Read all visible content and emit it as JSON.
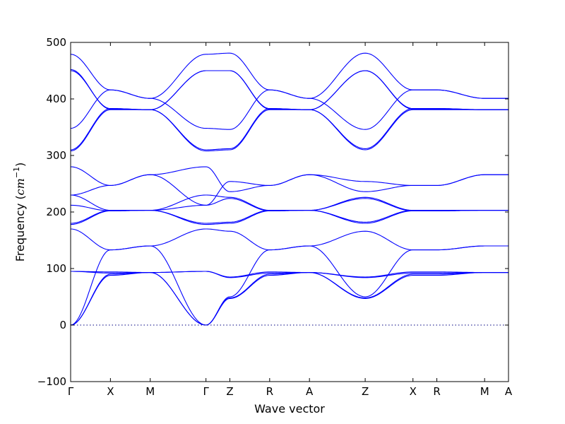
{
  "chart_data": {
    "type": "line",
    "title": "",
    "xlabel": "Wave vector",
    "ylabel_prefix": "Frequency (",
    "ylabel_math": "cm",
    "ylabel_exp": "−1",
    "ylabel_suffix": ")",
    "ylim": [
      -100,
      500
    ],
    "yticks": [
      -100,
      0,
      100,
      200,
      300,
      400,
      500
    ],
    "ytick_labels": [
      "−100",
      "0",
      "100",
      "200",
      "300",
      "400",
      "500"
    ],
    "grid": false,
    "zero_line": true,
    "color": "#0000ff",
    "kpoints": [
      {
        "label": "Γ",
        "x": 0
      },
      {
        "label": "X",
        "x": 0.5
      },
      {
        "label": "M",
        "x": 1.0
      },
      {
        "label": "Γ",
        "x": 1.7
      },
      {
        "label": "Z",
        "x": 2.0
      },
      {
        "label": "R",
        "x": 2.5
      },
      {
        "label": "A",
        "x": 3.0
      },
      {
        "label": "Z",
        "x": 3.7
      },
      {
        "label": "X",
        "x": 4.3
      },
      {
        "label": "R",
        "x": 4.6
      },
      {
        "label": "M",
        "x": 5.2
      },
      {
        "label": "A",
        "x": 5.5
      }
    ],
    "xlim": [
      0,
      5.5
    ],
    "series": [
      {
        "x": [
          0,
          0.5,
          1.0,
          1.7,
          2.0,
          2.5,
          3.0,
          3.7,
          4.3,
          4.6,
          5.2,
          5.5
        ],
        "values": [
          0,
          88,
          93,
          0,
          47,
          88,
          93,
          47,
          88,
          88,
          93,
          93
        ]
      },
      {
        "x": [
          0,
          0.5,
          1.0,
          1.7,
          2.0,
          2.5,
          3.0,
          3.7,
          4.3,
          4.6,
          5.2,
          5.5
        ],
        "values": [
          0,
          90,
          93,
          0,
          48,
          90,
          93,
          48,
          90,
          90,
          93,
          93
        ]
      },
      {
        "x": [
          0,
          0.5,
          1.0,
          1.7,
          2.0,
          2.5,
          3.0,
          3.7,
          4.3,
          4.6,
          5.2,
          5.5
        ],
        "values": [
          0,
          133,
          140,
          0,
          50,
          133,
          140,
          50,
          133,
          133,
          140,
          140
        ]
      },
      {
        "x": [
          0,
          0.5,
          1.0,
          1.7,
          2.0,
          2.5,
          3.0,
          3.7,
          4.3,
          4.6,
          5.2,
          5.5
        ],
        "values": [
          95,
          92,
          93,
          95,
          84,
          92,
          93,
          84,
          92,
          92,
          93,
          93
        ]
      },
      {
        "x": [
          0,
          0.5,
          1.0,
          1.7,
          2.0,
          2.5,
          3.0,
          3.7,
          4.3,
          4.6,
          5.2,
          5.5
        ],
        "values": [
          95,
          94,
          93,
          95,
          85,
          94,
          93,
          85,
          94,
          94,
          93,
          93
        ]
      },
      {
        "x": [
          0,
          0.5,
          1.0,
          1.7,
          2.0,
          2.5,
          3.0,
          3.7,
          4.3,
          4.6,
          5.2,
          5.5
        ],
        "values": [
          170,
          133,
          140,
          170,
          166,
          133,
          140,
          166,
          133,
          133,
          140,
          140
        ]
      },
      {
        "x": [
          0,
          0.5,
          1.0,
          1.7,
          2.0,
          2.5,
          3.0,
          3.7,
          4.3,
          4.6,
          5.2,
          5.5
        ],
        "values": [
          178,
          202,
          203,
          178,
          180,
          202,
          203,
          180,
          202,
          202,
          203,
          203
        ]
      },
      {
        "x": [
          0,
          0.5,
          1.0,
          1.7,
          2.0,
          2.5,
          3.0,
          3.7,
          4.3,
          4.6,
          5.2,
          5.5
        ],
        "values": [
          180,
          203,
          203,
          180,
          182,
          203,
          203,
          182,
          203,
          203,
          203,
          203
        ]
      },
      {
        "x": [
          0,
          0.5,
          1.0,
          1.7,
          2.0,
          2.5,
          3.0,
          3.7,
          4.3,
          4.6,
          5.2,
          5.5
        ],
        "values": [
          212,
          202,
          203,
          212,
          224,
          202,
          203,
          224,
          202,
          202,
          203,
          203
        ]
      },
      {
        "x": [
          0,
          0.5,
          1.0,
          1.7,
          2.0,
          2.5,
          3.0,
          3.7,
          4.3,
          4.6,
          5.2,
          5.5
        ],
        "values": [
          230,
          203,
          203,
          230,
          226,
          203,
          203,
          226,
          203,
          203,
          203,
          203
        ]
      },
      {
        "x": [
          0,
          0.5,
          1.0,
          1.7,
          2.0,
          2.5,
          3.0,
          3.7,
          4.3,
          4.6,
          5.2,
          5.5
        ],
        "values": [
          280,
          247,
          266,
          280,
          236,
          247,
          266,
          236,
          247,
          247,
          266,
          266
        ]
      },
      {
        "x": [
          0,
          0.5,
          1.0,
          1.7,
          2.0,
          2.5,
          3.0,
          3.7,
          4.3,
          4.6,
          5.2,
          5.5
        ],
        "values": [
          230,
          247,
          266,
          212,
          254,
          247,
          266,
          254,
          247,
          247,
          266,
          266
        ]
      },
      {
        "x": [
          0,
          0.5,
          1.0,
          1.7,
          2.0,
          2.5,
          3.0,
          3.7,
          4.3,
          4.6,
          5.2,
          5.5
        ],
        "values": [
          308,
          381,
          381,
          308,
          310,
          381,
          381,
          310,
          381,
          381,
          381,
          381
        ]
      },
      {
        "x": [
          0,
          0.5,
          1.0,
          1.7,
          2.0,
          2.5,
          3.0,
          3.7,
          4.3,
          4.6,
          5.2,
          5.5
        ],
        "values": [
          310,
          383,
          381,
          310,
          312,
          383,
          381,
          312,
          383,
          383,
          381,
          381
        ]
      },
      {
        "x": [
          0,
          0.5,
          1.0,
          1.7,
          2.0,
          2.5,
          3.0,
          3.7,
          4.3,
          4.6,
          5.2,
          5.5
        ],
        "values": [
          348,
          416,
          401,
          348,
          346,
          416,
          401,
          346,
          416,
          416,
          401,
          401
        ]
      },
      {
        "x": [
          0,
          0.5,
          1.0,
          1.7,
          2.0,
          2.5,
          3.0,
          3.7,
          4.3,
          4.6,
          5.2,
          5.5
        ],
        "values": [
          450,
          383,
          381,
          450,
          450,
          383,
          381,
          450,
          383,
          383,
          381,
          381
        ]
      },
      {
        "x": [
          0,
          0.5,
          1.0,
          1.7,
          2.0,
          2.5,
          3.0,
          3.7,
          4.3,
          4.6,
          5.2,
          5.5
        ],
        "values": [
          452,
          382,
          381,
          450,
          450,
          382,
          381,
          450,
          382,
          382,
          381,
          381
        ]
      },
      {
        "x": [
          0,
          0.5,
          1.0,
          1.7,
          2.0,
          2.5,
          3.0,
          3.7,
          4.3,
          4.6,
          5.2,
          5.5
        ],
        "values": [
          479,
          416,
          401,
          479,
          481,
          416,
          401,
          481,
          416,
          416,
          401,
          401
        ]
      }
    ]
  }
}
